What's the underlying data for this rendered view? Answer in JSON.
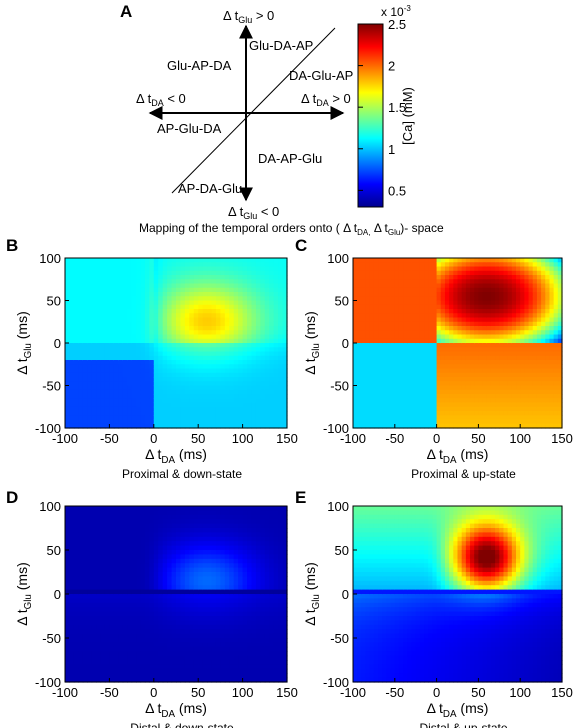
{
  "figure": {
    "panels": {
      "A": "A",
      "B": "B",
      "C": "C",
      "D": "D",
      "E": "E"
    }
  },
  "mapping": {
    "top": "Δt_Glu > 0",
    "bottom": "Δt_Glu < 0",
    "left": "Δt_DA < 0",
    "right": "Δt_DA > 0",
    "orders": [
      "Glu-DA-AP",
      "Glu-AP-DA",
      "DA-Glu-AP",
      "AP-Glu-DA",
      "DA-AP-Glu",
      "AP-DA-Glu"
    ],
    "caption": "Mapping of the temporal orders onto (Δt_DA, Δt_Glu)- space"
  },
  "colorbar": {
    "label": "[Ca] (mM)",
    "exponent": "x 10^-3",
    "ticks": [
      "2.5",
      "2",
      "1.5",
      "1",
      "0.5"
    ],
    "tick_values": [
      2.5,
      2.0,
      1.5,
      1.0,
      0.5
    ],
    "range": [
      0.3,
      2.5
    ],
    "colormap": [
      "#00008f",
      "#0000ff",
      "#0080ff",
      "#00ffff",
      "#80ff80",
      "#ffff00",
      "#ff8000",
      "#ff0000",
      "#800000"
    ]
  },
  "chart_data": [
    {
      "type": "heatmap",
      "panel": "B",
      "title": "Proximal & down-state",
      "xlabel": "Δt_DA (ms)",
      "ylabel": "Δt_Glu (ms)",
      "xlim": [
        -100,
        150
      ],
      "ylim": [
        -100,
        100
      ],
      "x_ticks": [
        -100,
        -50,
        0,
        50,
        100,
        150
      ],
      "y_ticks": [
        -100,
        -50,
        0,
        50,
        100
      ],
      "model": {
        "base": 1.02,
        "pre_dip": 0.72,
        "glu_pos_level": 1.12,
        "peak_x": 60,
        "peak_y": 25,
        "peak_amp": 0.65
      }
    },
    {
      "type": "heatmap",
      "panel": "C",
      "title": "Proximal & up-state",
      "xlabel": "Δt_DA (ms)",
      "ylabel": "Δt_Glu (ms)",
      "xlim": [
        -100,
        150
      ],
      "ylim": [
        -100,
        100
      ],
      "x_ticks": [
        -100,
        -50,
        0,
        50,
        100,
        150
      ],
      "y_ticks": [
        -100,
        -50,
        0,
        50,
        100
      ],
      "model": {
        "base": 1.05,
        "left_pos_level": 2.05,
        "right_neg_level": 2.0,
        "peak_x": 60,
        "peak_y": 55,
        "peak_amp": 2.5
      }
    },
    {
      "type": "heatmap",
      "panel": "D",
      "title": "Distal & down-state",
      "xlabel": "Δt_DA (ms)",
      "ylabel": "Δt_Glu (ms)",
      "xlim": [
        -100,
        150
      ],
      "ylim": [
        -100,
        100
      ],
      "x_ticks": [
        -100,
        -50,
        0,
        50,
        100,
        150
      ],
      "y_ticks": [
        -100,
        -50,
        0,
        50,
        100
      ],
      "model": {
        "base": 0.38,
        "peak_x": 60,
        "peak_y": 15,
        "peak_amp": 0.42
      }
    },
    {
      "type": "heatmap",
      "panel": "E",
      "title": "Distal & up-state",
      "xlabel": "Δt_DA (ms)",
      "ylabel": "Δt_Glu (ms)",
      "xlim": [
        -100,
        150
      ],
      "ylim": [
        -100,
        100
      ],
      "x_ticks": [
        -100,
        -50,
        0,
        50,
        100,
        150
      ],
      "y_ticks": [
        -100,
        -50,
        0,
        50,
        100
      ],
      "model": {
        "base": 0.62,
        "pos_level": 0.95,
        "peak_x": 60,
        "peak_y": 40,
        "peak_amp": 1.45
      }
    }
  ]
}
